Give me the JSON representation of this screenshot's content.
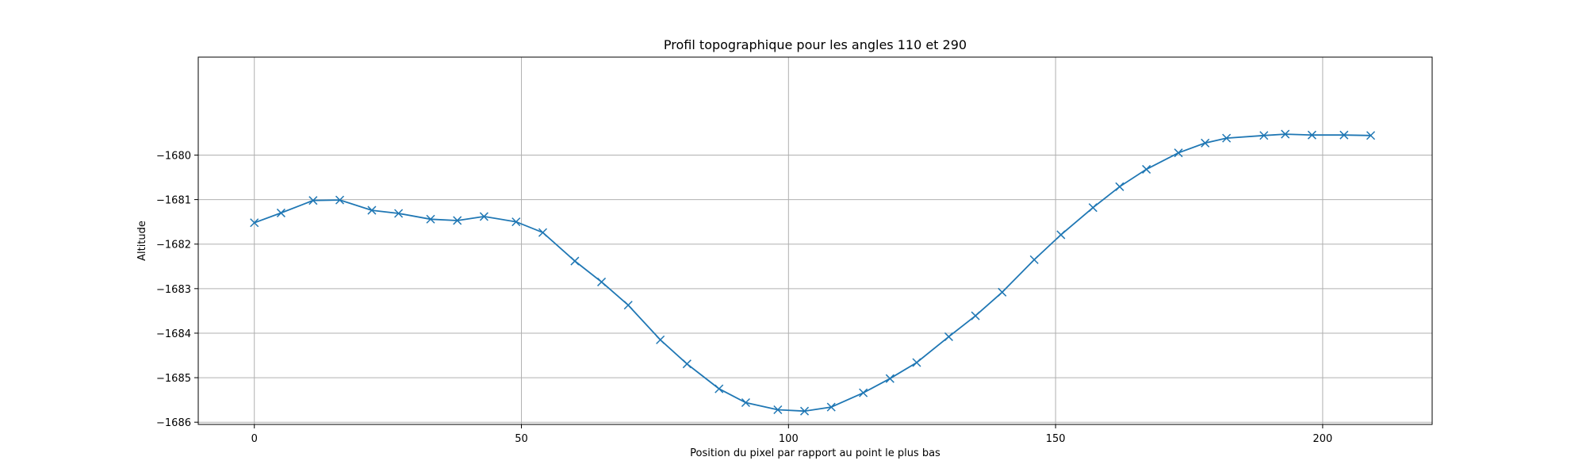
{
  "chart_data": {
    "type": "line",
    "title": "Profil topographique pour les angles 110 et 290",
    "xlabel": "Position du pixel par rapport au point le plus bas",
    "ylabel": "Altitude",
    "xlim": [
      -10.5,
      220.5
    ],
    "ylim": [
      -1686.05,
      -1677.8
    ],
    "grid": true,
    "legend": "none",
    "marker": "x",
    "color": "#1f77b4",
    "x_ticks": [
      0,
      50,
      100,
      150,
      200
    ],
    "x_tick_labels": [
      "0",
      "50",
      "100",
      "150",
      "200"
    ],
    "y_ticks": [
      -1680,
      -1681,
      -1682,
      -1683,
      -1684,
      -1685,
      -1686
    ],
    "y_tick_labels": [
      "−1680",
      "−1681",
      "−1682",
      "−1683",
      "−1684",
      "−1685",
      "−1686"
    ],
    "series": [
      {
        "x": [
          0,
          5,
          11,
          16,
          22,
          27,
          33,
          38,
          43,
          49,
          54,
          60,
          65,
          70,
          76,
          81,
          87,
          92,
          98,
          103,
          108,
          114,
          119,
          124,
          130,
          135,
          140,
          146,
          151,
          157,
          162,
          167,
          173,
          178,
          182,
          189,
          193,
          198,
          204,
          209
        ],
        "values": [
          -1681.52,
          -1681.3,
          -1681.02,
          -1681.01,
          -1681.24,
          -1681.31,
          -1681.44,
          -1681.47,
          -1681.38,
          -1681.5,
          -1681.74,
          -1682.38,
          -1682.85,
          -1683.37,
          -1684.15,
          -1684.69,
          -1685.25,
          -1685.56,
          -1685.72,
          -1685.75,
          -1685.66,
          -1685.34,
          -1685.02,
          -1684.66,
          -1684.08,
          -1683.61,
          -1683.08,
          -1682.35,
          -1681.79,
          -1681.18,
          -1680.71,
          -1680.32,
          -1679.95,
          -1679.73,
          -1679.62,
          -1679.56,
          -1679.53,
          -1679.55,
          -1679.55,
          -1679.56
        ]
      }
    ]
  }
}
